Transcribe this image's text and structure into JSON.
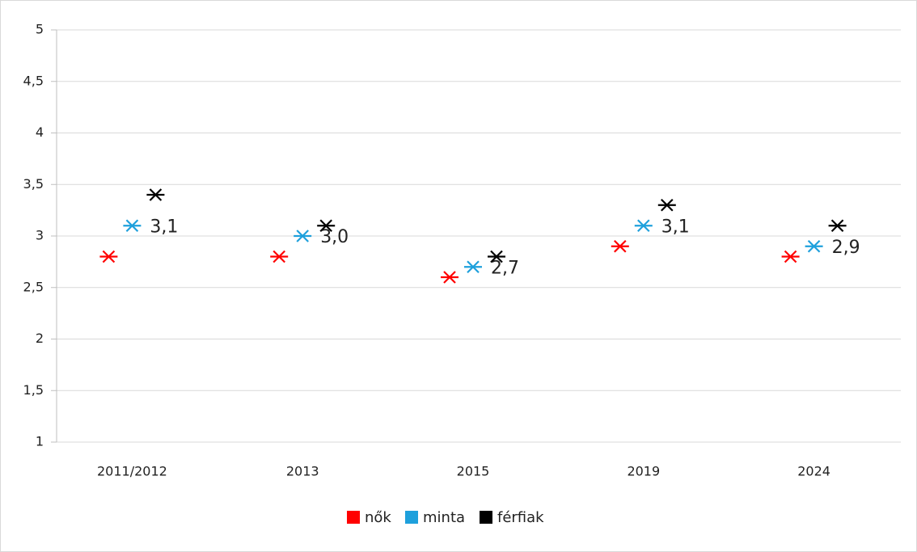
{
  "chart_data": {
    "type": "line",
    "categories": [
      "2011/2012",
      "2013",
      "2015",
      "2019",
      "2024"
    ],
    "series": [
      {
        "name": "nők",
        "color": "#ff0000",
        "values": [
          2.8,
          2.8,
          2.6,
          2.9,
          2.8
        ]
      },
      {
        "name": "minta",
        "color": "#1ea0dc",
        "values": [
          3.1,
          3.0,
          2.7,
          3.1,
          2.9
        ],
        "value_labels": [
          "3,1",
          "3,0",
          "2,7",
          "3,1",
          "2,9"
        ]
      },
      {
        "name": "férfiak",
        "color": "#000000",
        "values": [
          3.4,
          3.1,
          2.8,
          3.3,
          3.1
        ]
      }
    ],
    "ylim": [
      1,
      5
    ],
    "yticks": [
      1,
      {
        "value": 1.5,
        "label": "1,5"
      },
      2,
      {
        "value": 2.5,
        "label": "2,5"
      },
      3,
      {
        "value": 3.5,
        "label": "3,5"
      },
      4,
      {
        "value": 4.5,
        "label": "4,5"
      },
      5
    ],
    "grid": true,
    "legend": "bottom"
  }
}
